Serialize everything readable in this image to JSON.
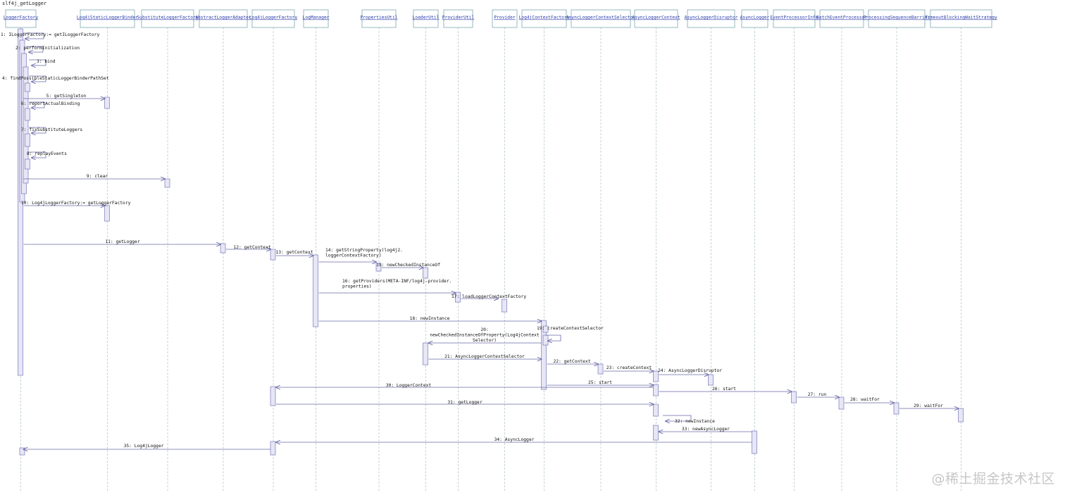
{
  "title": "slf4j_getLogger",
  "watermark": "@稀土掘金技术社区",
  "colors": {
    "lifeline": "#b7c9cc",
    "box_border": "#7aa7b0",
    "activation_fill": "#e6e6f6",
    "activation_border": "#7a7ab8",
    "arrow": "#6a6aa8"
  },
  "participants": [
    {
      "name": "LoggerFactory"
    },
    {
      "name": "Log4jStaticLoggerBinder"
    },
    {
      "name": "SubstituteLoggerFactory"
    },
    {
      "name": "AbstractLoggerAdapter"
    },
    {
      "name": "Log4jLoggerFactory"
    },
    {
      "name": "LogManager"
    },
    {
      "name": "PropertiesUtil"
    },
    {
      "name": "LoaderUtil"
    },
    {
      "name": "ProviderUtil"
    },
    {
      "name": "Provider"
    },
    {
      "name": "Log4jContextFactory"
    },
    {
      "name": "AsyncLoggerContextSelector"
    },
    {
      "name": "AsyncLoggerContext"
    },
    {
      "name": "AsyncLoggerDisruptor"
    },
    {
      "name": "AsyncLogger"
    },
    {
      "name": "EventProcessorInfo"
    },
    {
      "name": "BatchEventProcessor"
    },
    {
      "name": "ProcessingSequenceBarrier"
    },
    {
      "name": "TimeoutBlockingWaitStrategy"
    }
  ],
  "messages": [
    {
      "text": "1: ILoggerFactory:= getILoggerFactory",
      "from": 0,
      "to": 0,
      "self": true
    },
    {
      "text": "2: performInitialization",
      "from": 0,
      "to": 0,
      "self": true
    },
    {
      "text": "3: bind",
      "from": 0,
      "to": 0,
      "self": true
    },
    {
      "text": "4: findPossibleStaticLoggerBinderPathSet",
      "from": 0,
      "to": 0,
      "self": true
    },
    {
      "text": "5: getSingleton",
      "from": 0,
      "to": 1
    },
    {
      "text": "6: reportActualBinding",
      "from": 0,
      "to": 0,
      "self": true
    },
    {
      "text": "7: fixSubstituteLoggers",
      "from": 0,
      "to": 0,
      "self": true
    },
    {
      "text": "8: replayEvents",
      "from": 0,
      "to": 0,
      "self": true
    },
    {
      "text": "9: clear",
      "from": 0,
      "to": 2
    },
    {
      "text": "10: Log4jLoggerFactory:= getLoggerFactory",
      "from": 0,
      "to": 1
    },
    {
      "text": "11: getLogger",
      "from": 0,
      "to": 3
    },
    {
      "text": "12: getContext",
      "from": 3,
      "to": 4
    },
    {
      "text": "13: getContext",
      "from": 4,
      "to": 5
    },
    {
      "text": "14: getStringProperty(log4j2.",
      "text2": "loggerContextFactory)",
      "from": 5,
      "to": 6
    },
    {
      "text": "15: newCheckedInstanceOf",
      "from": 6,
      "to": 7
    },
    {
      "text": "16: getProviders(META-INF/log4j-provider.",
      "text2": "properties)",
      "from": 5,
      "to": 8
    },
    {
      "text": "17: loadLoggerContextFactory",
      "from": 8,
      "to": 9
    },
    {
      "text": "18: newInstance",
      "from": 5,
      "to": 10
    },
    {
      "text": "19: createContextSelector",
      "from": 10,
      "to": 10,
      "self": true
    },
    {
      "text": "20:",
      "text2": "newCheckedInstanceOfProperty(Log4jContext",
      "text3": "Selector)",
      "from": 10,
      "to": 7
    },
    {
      "text": "21: AsyncLoggerContextSelector",
      "from": 7,
      "to": 10
    },
    {
      "text": "22: getContext",
      "from": 10,
      "to": 11
    },
    {
      "text": "23: createContext",
      "from": 11,
      "to": 12
    },
    {
      "text": "24: AsyncLoggerDisruptor",
      "from": 12,
      "to": 13
    },
    {
      "text": "25: start",
      "from": 10,
      "to": 12
    },
    {
      "text": "26: start",
      "from": 12,
      "to": 15
    },
    {
      "text": "27: run",
      "from": 15,
      "to": 16
    },
    {
      "text": "28: waitFor",
      "from": 16,
      "to": 17
    },
    {
      "text": "29: waitFor",
      "from": 17,
      "to": 18
    },
    {
      "text": "30: LoggerContext",
      "from": 12,
      "to": 4
    },
    {
      "text": "31: getLogger",
      "from": 4,
      "to": 12
    },
    {
      "text": "32: newInstance",
      "from": 12,
      "to": 12,
      "self": true
    },
    {
      "text": "33: newAsyncLogger",
      "from": 14,
      "to": 12
    },
    {
      "text": "34: AsyncLogger",
      "from": 14,
      "to": 4
    },
    {
      "text": "35: Log4jLogger",
      "from": 4,
      "to": 0
    }
  ]
}
